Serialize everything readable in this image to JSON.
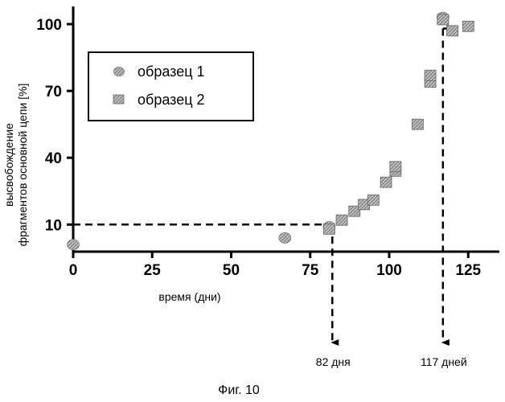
{
  "chart_data": {
    "type": "scatter",
    "xlabel": "время (дни)",
    "ylabel_lines": [
      "высвобождение",
      "фрагментов основной цепи [%]"
    ],
    "xticks": [
      0,
      25,
      50,
      75,
      100,
      125
    ],
    "yticks": [
      10,
      40,
      70,
      100
    ],
    "xlim": [
      0,
      130
    ],
    "ylim": [
      0,
      105
    ],
    "grid": false,
    "legend_position": "top-left",
    "series": [
      {
        "name": "образец 1",
        "marker": "circle",
        "color": "#8a8a8a",
        "points": [
          {
            "x": 0,
            "y": 1
          },
          {
            "x": 67,
            "y": 4
          },
          {
            "x": 81,
            "y": 9
          },
          {
            "x": 117,
            "y": 103
          }
        ]
      },
      {
        "name": "образец 2",
        "marker": "square",
        "color": "#6e6e6e",
        "points": [
          {
            "x": 81,
            "y": 8
          },
          {
            "x": 85,
            "y": 12
          },
          {
            "x": 89,
            "y": 16
          },
          {
            "x": 92,
            "y": 19
          },
          {
            "x": 95,
            "y": 21
          },
          {
            "x": 99,
            "y": 29
          },
          {
            "x": 102,
            "y": 34
          },
          {
            "x": 102,
            "y": 36
          },
          {
            "x": 109,
            "y": 55
          },
          {
            "x": 113,
            "y": 74
          },
          {
            "x": 113,
            "y": 77
          },
          {
            "x": 117,
            "y": 102
          },
          {
            "x": 120,
            "y": 97
          },
          {
            "x": 125,
            "y": 99
          }
        ]
      }
    ],
    "guides": [
      {
        "x": 82,
        "y": 10,
        "label": "82 дня"
      },
      {
        "x": 117,
        "y": 98,
        "label": "117 дней"
      }
    ]
  },
  "caption": "Фиг. 10"
}
